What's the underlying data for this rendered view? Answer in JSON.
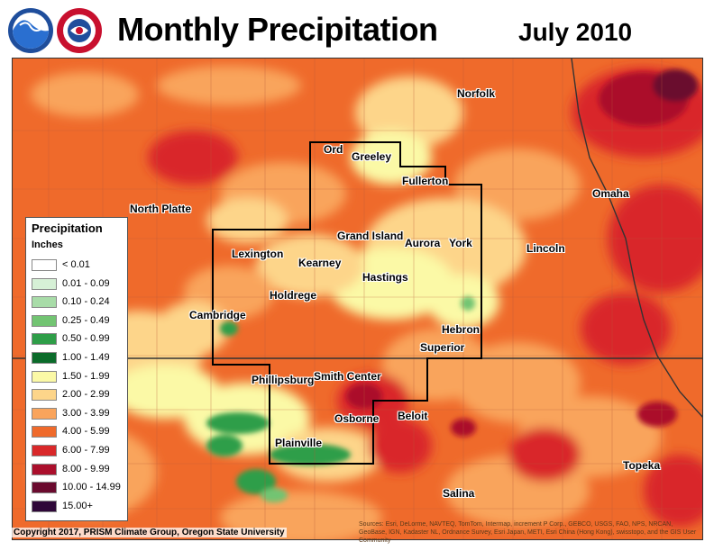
{
  "header": {
    "title": "Monthly Precipitation",
    "period": "July 2010",
    "logos": [
      "noaa-logo",
      "national-weather-service-logo"
    ]
  },
  "legend": {
    "title": "Precipitation",
    "units": "Inches",
    "bins": [
      {
        "label": "< 0.01",
        "color": "#ffffff"
      },
      {
        "label": "0.01 - 0.09",
        "color": "#d6f0d6"
      },
      {
        "label": "0.10 - 0.24",
        "color": "#a8dca8"
      },
      {
        "label": "0.25 - 0.49",
        "color": "#72c472"
      },
      {
        "label": "0.50 - 0.99",
        "color": "#2e9e48"
      },
      {
        "label": "1.00 - 1.49",
        "color": "#0b6b2a"
      },
      {
        "label": "1.50 - 1.99",
        "color": "#fbf9a6"
      },
      {
        "label": "2.00 - 2.99",
        "color": "#fdd58a"
      },
      {
        "label": "3.00 - 3.99",
        "color": "#f9a45c"
      },
      {
        "label": "4.00 - 5.99",
        "color": "#ef6a2b"
      },
      {
        "label": "6.00 - 7.99",
        "color": "#d9282a"
      },
      {
        "label": "8.00 - 9.99",
        "color": "#ab0f2c"
      },
      {
        "label": "10.00 - 14.99",
        "color": "#6a0a2e"
      },
      {
        "label": "15.00+",
        "color": "#2e0738"
      }
    ]
  },
  "cities": [
    {
      "name": "Norfolk"
    },
    {
      "name": "Ord"
    },
    {
      "name": "Greeley"
    },
    {
      "name": "Fullerton"
    },
    {
      "name": "Omaha"
    },
    {
      "name": "North Platte"
    },
    {
      "name": "Grand Island"
    },
    {
      "name": "Aurora"
    },
    {
      "name": "York"
    },
    {
      "name": "Lincoln"
    },
    {
      "name": "Lexington"
    },
    {
      "name": "Kearney"
    },
    {
      "name": "Hastings"
    },
    {
      "name": "Holdrege"
    },
    {
      "name": "Cambridge"
    },
    {
      "name": "Hebron"
    },
    {
      "name": "Superior"
    },
    {
      "name": "Phillipsburg"
    },
    {
      "name": "Smith Center"
    },
    {
      "name": "Beloit"
    },
    {
      "name": "Osborne"
    },
    {
      "name": "Plainville"
    },
    {
      "name": "Topeka"
    },
    {
      "name": "Salina"
    }
  ],
  "footer": {
    "copyright": "Copyright 2017, PRISM Climate Group, Oregon State University",
    "credits": "Sources: Esri, DeLorme, NAVTEQ, TomTom, Intermap, increment P Corp., GEBCO, USGS, FAO, NPS, NRCAN, GeoBase, IGN, Kadaster NL, Ordnance Survey, Esri Japan, METI, Esri China (Hong Kong), swisstopo, and the GIS User Community"
  },
  "colors": {
    "map_background": "#ef6a2b",
    "county_lines": "#b85a3a",
    "cwa_boundary": "#000000",
    "state_boundary": "#333333"
  }
}
